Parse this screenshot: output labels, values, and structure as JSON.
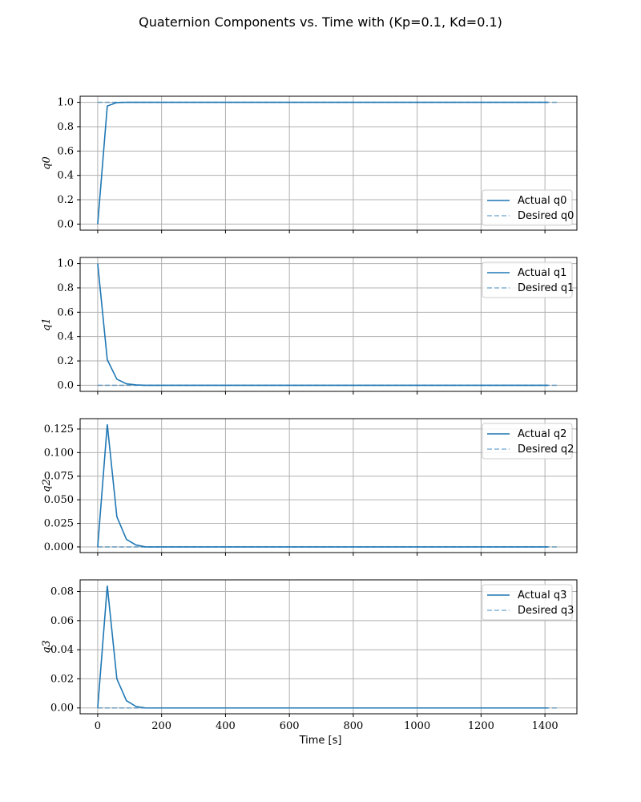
{
  "title": "Quaternion Components vs. Time with (Kp=0.1, Kd=0.1)",
  "colors": {
    "series": "#1f77b4",
    "grid": "#b0b0b0"
  },
  "chart_data": [
    {
      "type": "line",
      "ylabel": "q0",
      "xlim": [
        -55,
        1500
      ],
      "ylim": [
        -0.05,
        1.05
      ],
      "yticks": [
        0.0,
        0.2,
        0.4,
        0.6,
        0.8,
        1.0
      ],
      "ytick_labels": [
        "0.0",
        "0.2",
        "0.4",
        "0.6",
        "0.8",
        "1.0"
      ],
      "legend": {
        "placement": "lower-right",
        "entries": [
          "Actual q0",
          "Desired q0"
        ]
      },
      "series": [
        {
          "name": "Actual q0",
          "style": "solid",
          "x": [
            0,
            30,
            60,
            90,
            120,
            150,
            1410
          ],
          "y": [
            0.0,
            0.97,
            0.998,
            1.0,
            1.0,
            1.0,
            1.0
          ]
        },
        {
          "name": "Desired q0",
          "style": "dashed",
          "x": [
            0,
            1440
          ],
          "y": [
            1.0,
            1.0
          ]
        }
      ]
    },
    {
      "type": "line",
      "ylabel": "q1",
      "xlim": [
        -55,
        1500
      ],
      "ylim": [
        -0.05,
        1.05
      ],
      "yticks": [
        0.0,
        0.2,
        0.4,
        0.6,
        0.8,
        1.0
      ],
      "ytick_labels": [
        "0.0",
        "0.2",
        "0.4",
        "0.6",
        "0.8",
        "1.0"
      ],
      "legend": {
        "placement": "top-right",
        "entries": [
          "Actual q1",
          "Desired q1"
        ]
      },
      "series": [
        {
          "name": "Actual q1",
          "style": "solid",
          "x": [
            0,
            30,
            60,
            90,
            120,
            150,
            1410
          ],
          "y": [
            1.0,
            0.21,
            0.05,
            0.012,
            0.003,
            0.0,
            0.0
          ]
        },
        {
          "name": "Desired q1",
          "style": "dashed",
          "x": [
            0,
            1440
          ],
          "y": [
            0.0,
            0.0
          ]
        }
      ]
    },
    {
      "type": "line",
      "ylabel": "q2",
      "xlim": [
        -55,
        1500
      ],
      "ylim": [
        -0.006,
        0.136
      ],
      "yticks": [
        0.0,
        0.025,
        0.05,
        0.075,
        0.1,
        0.125
      ],
      "ytick_labels": [
        "0.000",
        "0.025",
        "0.050",
        "0.075",
        "0.100",
        "0.125"
      ],
      "legend": {
        "placement": "top-right",
        "entries": [
          "Actual q2",
          "Desired q2"
        ]
      },
      "series": [
        {
          "name": "Actual q2",
          "style": "solid",
          "x": [
            0,
            30,
            60,
            90,
            120,
            150,
            1410
          ],
          "y": [
            0.0,
            0.13,
            0.032,
            0.008,
            0.002,
            0.0,
            0.0
          ]
        },
        {
          "name": "Desired q2",
          "style": "dashed",
          "x": [
            0,
            1440
          ],
          "y": [
            0.0,
            0.0
          ]
        }
      ]
    },
    {
      "type": "line",
      "ylabel": "q3",
      "xlabel": "Time [s]",
      "xlim": [
        -55,
        1500
      ],
      "xticks": [
        0,
        200,
        400,
        600,
        800,
        1000,
        1200,
        1400
      ],
      "xtick_labels": [
        "0",
        "200",
        "400",
        "600",
        "800",
        "1000",
        "1200",
        "1400"
      ],
      "ylim": [
        -0.004,
        0.088
      ],
      "yticks": [
        0.0,
        0.02,
        0.04,
        0.06,
        0.08
      ],
      "ytick_labels": [
        "0.00",
        "0.02",
        "0.04",
        "0.06",
        "0.08"
      ],
      "legend": {
        "placement": "top-right",
        "entries": [
          "Actual q3",
          "Desired q3"
        ]
      },
      "series": [
        {
          "name": "Actual q3",
          "style": "solid",
          "x": [
            0,
            30,
            60,
            90,
            120,
            150,
            1410
          ],
          "y": [
            0.0,
            0.084,
            0.02,
            0.005,
            0.001,
            0.0,
            0.0
          ]
        },
        {
          "name": "Desired q3",
          "style": "dashed",
          "x": [
            0,
            1440
          ],
          "y": [
            0.0,
            0.0
          ]
        }
      ]
    }
  ]
}
